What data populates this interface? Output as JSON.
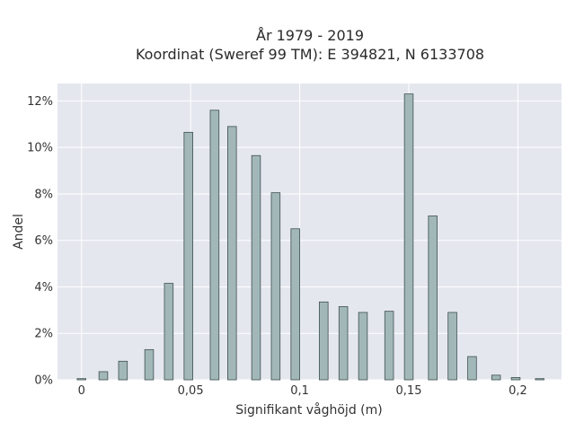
{
  "title": {
    "line1": "År 1979 - 2019",
    "line2": "Koordinat (Sweref 99 TM): E 394821, N 6133708"
  },
  "colors": {
    "plot_background": "#e5e7ef",
    "gridline": "#ffffff",
    "bar_fill": "#a2b8b8",
    "bar_stroke": "#3f4f4f"
  },
  "chart_data": {
    "type": "bar",
    "xlabel": "Signifikant våghöjd (m)",
    "ylabel": "Andel",
    "xlim": [
      -0.011,
      0.22
    ],
    "ylim": [
      0,
      12.75
    ],
    "grid": true,
    "x_ticks": [
      {
        "value": 0,
        "label": "0"
      },
      {
        "value": 0.05,
        "label": "0,05"
      },
      {
        "value": 0.1,
        "label": "0,1"
      },
      {
        "value": 0.15,
        "label": "0,15"
      },
      {
        "value": 0.2,
        "label": "0,2"
      }
    ],
    "y_ticks": [
      {
        "value": 0,
        "label": "0%"
      },
      {
        "value": 2,
        "label": "2%"
      },
      {
        "value": 4,
        "label": "4%"
      },
      {
        "value": 6,
        "label": "6%"
      },
      {
        "value": 8,
        "label": "8%"
      },
      {
        "value": 10,
        "label": "10%"
      },
      {
        "value": 12,
        "label": "12%"
      }
    ],
    "bar_width": 0.004,
    "x": [
      0.0,
      0.01,
      0.019,
      0.031,
      0.04,
      0.049,
      0.061,
      0.069,
      0.08,
      0.089,
      0.098,
      0.111,
      0.12,
      0.129,
      0.141,
      0.15,
      0.161,
      0.17,
      0.179,
      0.19,
      0.199,
      0.21
    ],
    "values": [
      0.05,
      0.35,
      0.8,
      1.3,
      4.15,
      10.65,
      11.6,
      10.9,
      9.65,
      8.05,
      6.5,
      3.35,
      3.15,
      2.9,
      2.95,
      12.3,
      7.05,
      2.9,
      1.0,
      0.2,
      0.1,
      0.05
    ]
  }
}
